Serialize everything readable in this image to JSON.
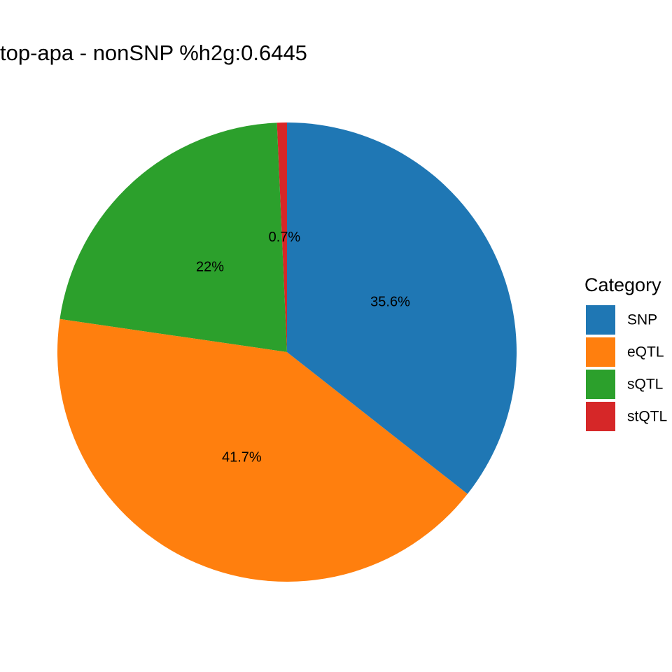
{
  "chart_data": {
    "type": "pie",
    "title": "top-apa - nonSNP %h2g:0.6445",
    "legend_title": "Category",
    "legend_position": "right",
    "slices": [
      {
        "category": "SNP",
        "value": 35.6,
        "label": "35.6%",
        "color": "#1f77b4"
      },
      {
        "category": "eQTL",
        "value": 41.7,
        "label": "41.7%",
        "color": "#ff7f0e"
      },
      {
        "category": "sQTL",
        "value": 22.0,
        "label": "22%",
        "color": "#2ca02c"
      },
      {
        "category": "stQTL",
        "value": 0.7,
        "label": "0.7%",
        "color": "#d62728"
      }
    ]
  }
}
